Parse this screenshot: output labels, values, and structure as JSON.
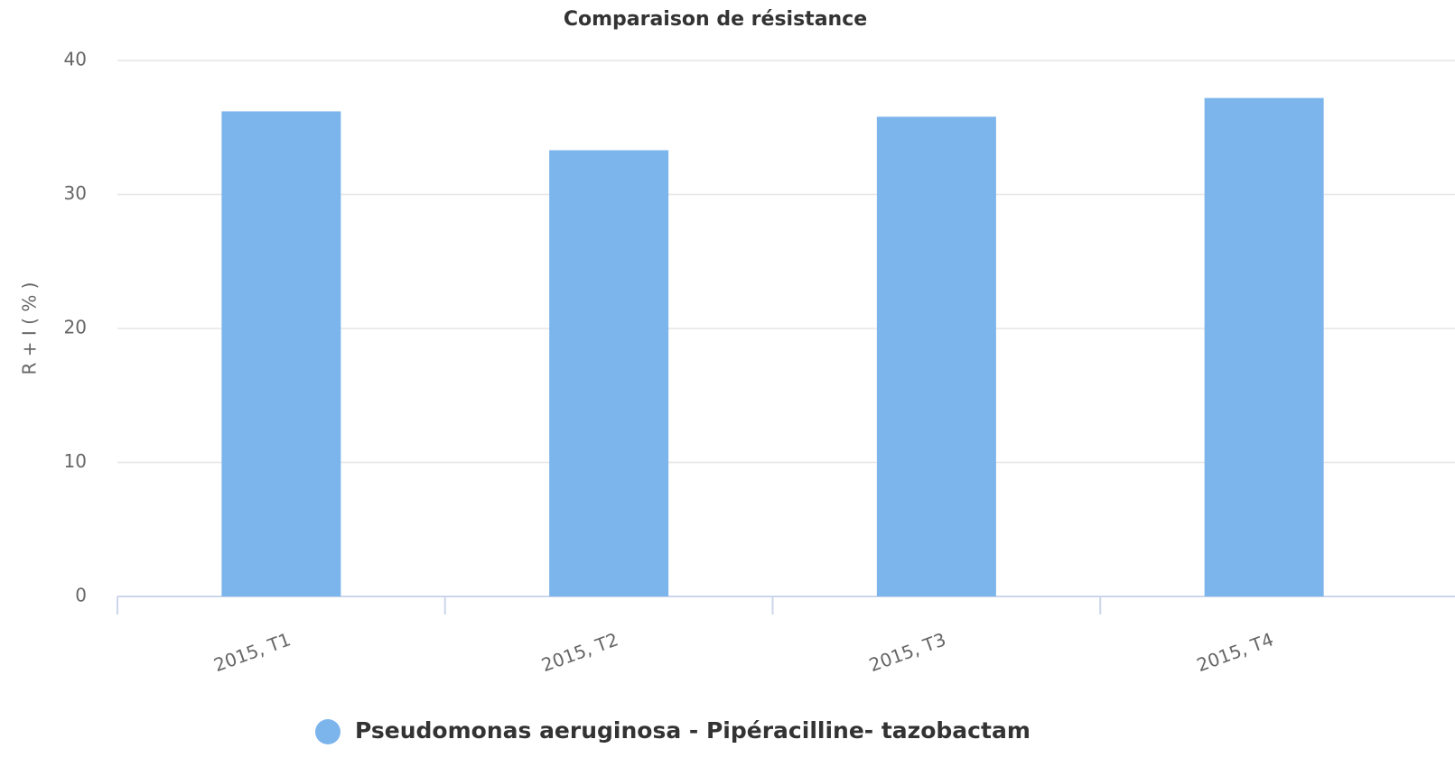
{
  "chart_data": {
    "type": "bar",
    "title": "Comparaison de résistance",
    "y_label": "R + I ( % )",
    "categories": [
      "2015, T1",
      "2015, T2",
      "2015, T3",
      "2015, T4"
    ],
    "series": [
      {
        "name": "Pseudomonas aeruginosa - Pipéracilline- tazobactam",
        "color": "#7cb5ec",
        "values": [
          36.2,
          33.3,
          35.8,
          37.2
        ]
      }
    ],
    "ylim": [
      0,
      40
    ],
    "yticks": [
      0,
      10,
      20,
      30,
      40
    ],
    "grid": true,
    "legend": "bottom"
  }
}
